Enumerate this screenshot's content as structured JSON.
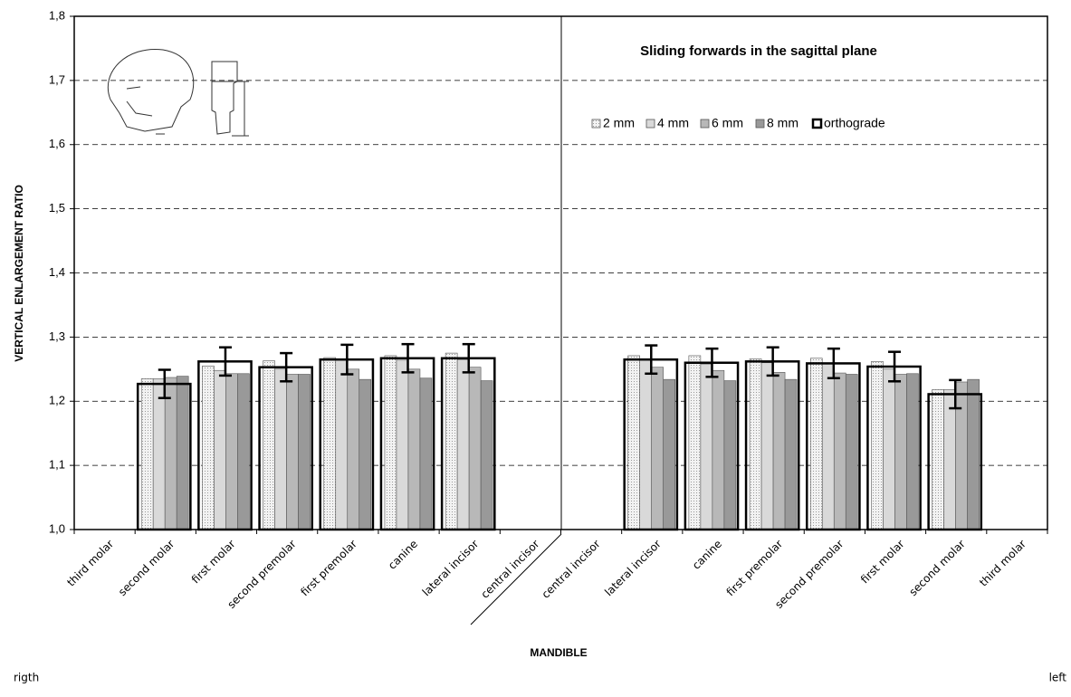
{
  "chart_data": {
    "type": "bar",
    "title": "Sliding forwards in the sagittal plane",
    "y_label": "VERTICAL ENLARGEMENT RATIO",
    "x_label": "MANDIBLE",
    "side_labels": [
      "rigth",
      "left"
    ],
    "categories": [
      "third molar",
      "second molar",
      "first molar",
      "second premolar",
      "first premolar",
      "canine",
      "lateral incisor",
      "central incisor",
      "central incisor",
      "lateral incisor",
      "canine",
      "first premolar",
      "second premolar",
      "first molar",
      "second molar",
      "third molar"
    ],
    "series": [
      {
        "name": "2 mm",
        "color": "#f2f2f2",
        "values": [
          null,
          1.235,
          1.255,
          1.263,
          1.268,
          1.271,
          1.275,
          null,
          null,
          1.271,
          1.271,
          1.266,
          1.267,
          1.262,
          1.218,
          null
        ]
      },
      {
        "name": "4 mm",
        "color": "#d9d9d9",
        "values": [
          null,
          1.235,
          1.248,
          1.25,
          1.265,
          1.264,
          1.265,
          null,
          null,
          1.265,
          1.258,
          1.26,
          1.258,
          1.25,
          1.218,
          null
        ]
      },
      {
        "name": "6 mm",
        "color": "#b8b8b8",
        "values": [
          null,
          1.237,
          1.243,
          1.242,
          1.25,
          1.25,
          1.253,
          null,
          null,
          1.253,
          1.248,
          1.245,
          1.244,
          1.242,
          1.23,
          null
        ]
      },
      {
        "name": "8 mm",
        "color": "#999999",
        "values": [
          null,
          1.239,
          1.243,
          1.242,
          1.234,
          1.236,
          1.232,
          null,
          null,
          1.234,
          1.232,
          1.234,
          1.242,
          1.243,
          1.234,
          null
        ]
      },
      {
        "name": "orthograde",
        "color": "#000000",
        "values": [
          null,
          1.227,
          1.262,
          1.253,
          1.265,
          1.267,
          1.267,
          null,
          null,
          1.265,
          1.26,
          1.262,
          1.259,
          1.254,
          1.211,
          null
        ],
        "errors": [
          null,
          0.022,
          0.022,
          0.022,
          0.023,
          0.022,
          0.022,
          null,
          null,
          0.022,
          0.022,
          0.022,
          0.023,
          0.023,
          0.022,
          null
        ]
      }
    ],
    "ylim": [
      1.0,
      1.8
    ],
    "yticks": [
      {
        "value": 1.0,
        "label": "1,0"
      },
      {
        "value": 1.1,
        "label": "1,1"
      },
      {
        "value": 1.2,
        "label": "1,2"
      },
      {
        "value": 1.3,
        "label": "1,3"
      },
      {
        "value": 1.4,
        "label": "1,4"
      },
      {
        "value": 1.5,
        "label": "1,5"
      },
      {
        "value": 1.6,
        "label": "1,6"
      },
      {
        "value": 1.7,
        "label": "1,7"
      },
      {
        "value": 1.8,
        "label": "1,8"
      }
    ],
    "grid": true
  }
}
